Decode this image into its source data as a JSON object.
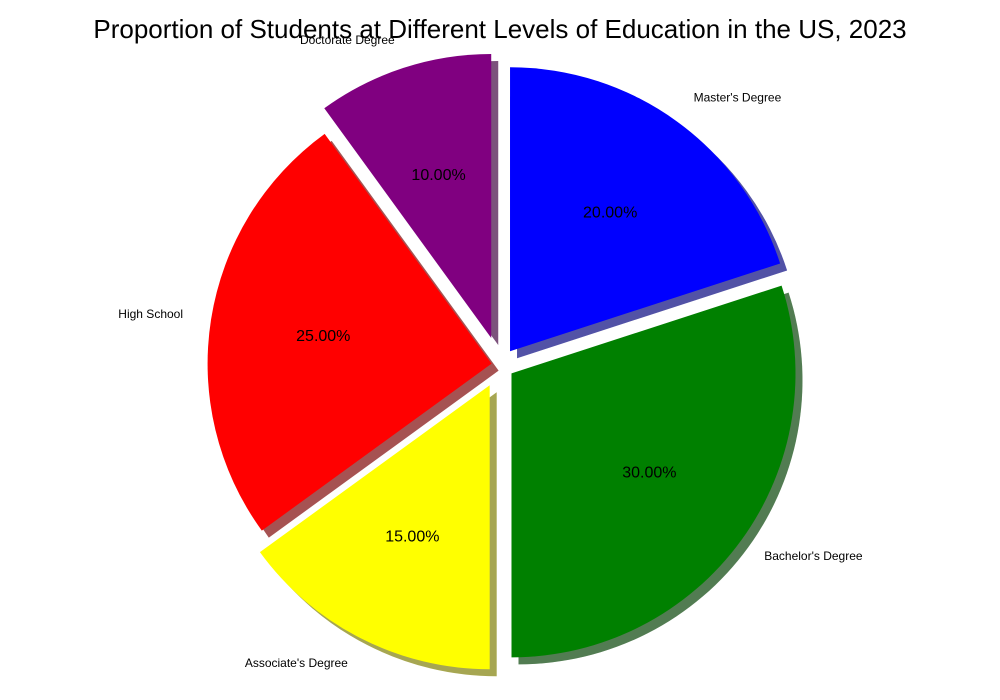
{
  "chart_data": {
    "type": "pie",
    "title": "Proportion of Students at Different Levels of Education in the US, 2023",
    "slices": [
      {
        "label": "High School",
        "value": 25,
        "pct_text": "25.00%",
        "color": "#ff0000",
        "explode": 0.03
      },
      {
        "label": "Associate's Degree",
        "value": 15,
        "pct_text": "15.00%",
        "color": "#ffff00",
        "explode": 0.08
      },
      {
        "label": "Bachelor's Degree",
        "value": 30,
        "pct_text": "30.00%",
        "color": "#008000",
        "explode": 0.05
      },
      {
        "label": "Master's Degree",
        "value": 20,
        "pct_text": "20.00%",
        "color": "#0000ff",
        "explode": 0.06
      },
      {
        "label": "Doctorate Degree",
        "value": 10,
        "pct_text": "10.00%",
        "color": "#800080",
        "explode": 0.1
      }
    ],
    "start_angle_deg": 126,
    "direction": "counterclockwise",
    "shadow": true,
    "legend": false
  }
}
